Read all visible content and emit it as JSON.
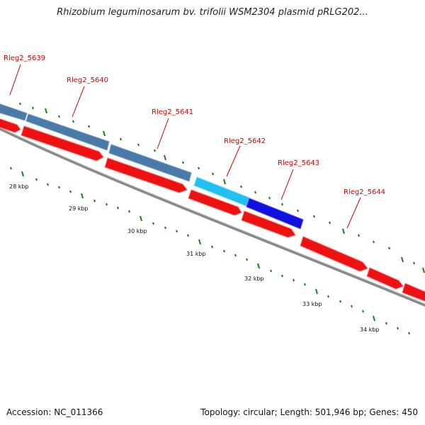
{
  "title": "Rhizobium leguminosarum bv. trifolii WSM2304 plasmid pRLG202...",
  "footer": {
    "accession": "Accession: NC_011366",
    "stats": "Topology: circular; Length: 501,946 bp; Genes: 450"
  },
  "colors": {
    "label": "#d00000",
    "backbone": "#808080",
    "tick": "#1a7a1a",
    "forward_gene_default": "#4a7aa8",
    "forward_gene_highlight_light": "#22c0f0",
    "forward_gene_highlight_dark": "#1010e0",
    "reverse_gene": "#ee1111"
  },
  "gene_labels": [
    {
      "name": "Rleg2_5639"
    },
    {
      "name": "Rleg2_5640"
    },
    {
      "name": "Rleg2_5641"
    },
    {
      "name": "Rleg2_5642"
    },
    {
      "name": "Rleg2_5643"
    },
    {
      "name": "Rleg2_5644"
    }
  ],
  "kbp_labels": [
    "28 kbp",
    "29 kbp",
    "30 kbp",
    "31 kbp",
    "32 kbp",
    "33 kbp",
    "34 kbp"
  ]
}
